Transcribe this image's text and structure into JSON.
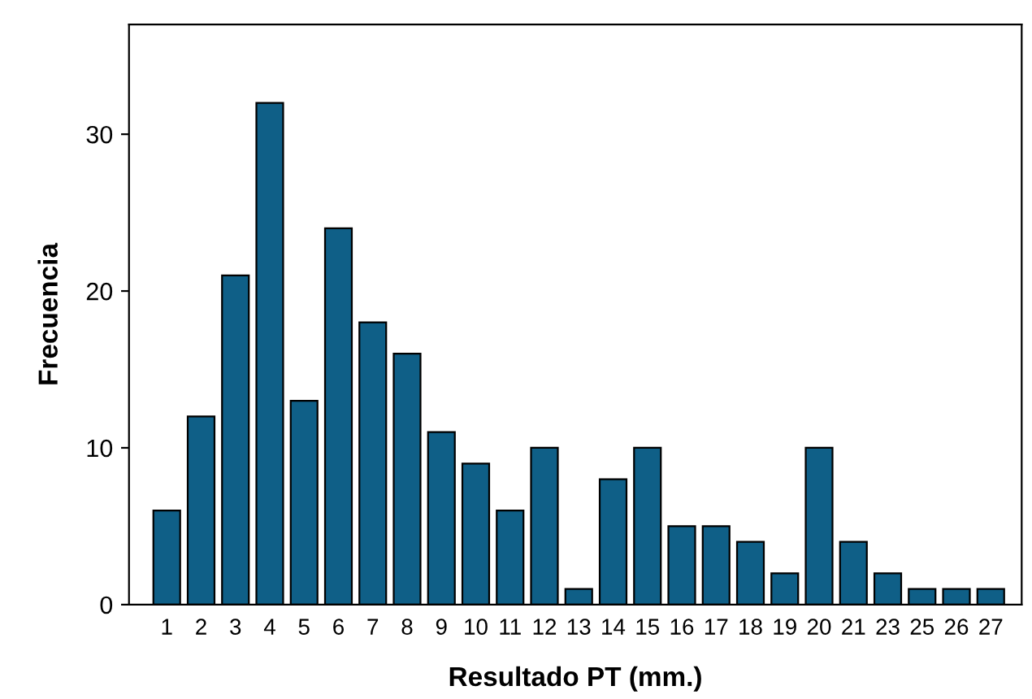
{
  "chart_data": {
    "type": "bar",
    "xlabel": "Resultado PT (mm.)",
    "ylabel": "Frecuencia",
    "categories": [
      "1",
      "2",
      "3",
      "4",
      "5",
      "6",
      "7",
      "8",
      "9",
      "10",
      "11",
      "12",
      "13",
      "14",
      "15",
      "16",
      "17",
      "18",
      "19",
      "20",
      "21",
      "23",
      "25",
      "26",
      "27"
    ],
    "values": [
      6,
      12,
      21,
      32,
      13,
      24,
      18,
      16,
      11,
      9,
      6,
      10,
      1,
      8,
      10,
      5,
      5,
      4,
      2,
      10,
      4,
      2,
      1,
      1,
      1
    ],
    "color": "#0f5f87",
    "ylim": [
      0,
      37
    ],
    "yticks": [
      0,
      10,
      20,
      30
    ],
    "grid": false,
    "legend": false
  }
}
